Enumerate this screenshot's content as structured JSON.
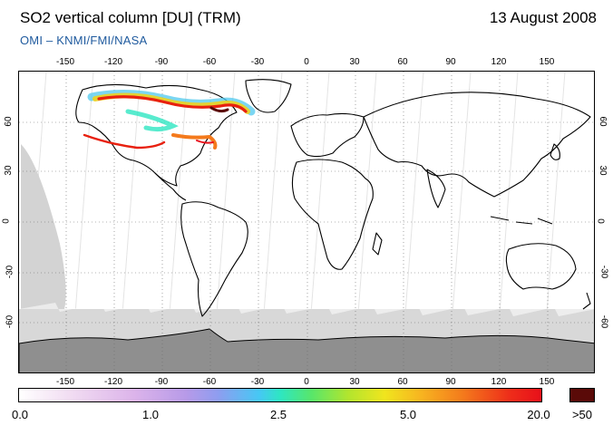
{
  "header": {
    "title": "SO2 vertical column [DU] (TRM)",
    "date": "13 August 2008",
    "credit": "OMI  –  KNMI/FMI/NASA"
  },
  "map": {
    "longitude_ticks": [
      "-150",
      "-120",
      "-90",
      "-60",
      "-30",
      "0",
      "30",
      "60",
      "90",
      "120",
      "150"
    ],
    "latitude_ticks": [
      "60",
      "30",
      "0",
      "-30",
      "-60"
    ],
    "grid": "dotted",
    "no_data_color": "#d3d3d3",
    "land_outline_color": "#000000"
  },
  "colorbar": {
    "labels": [
      "0.0",
      "1.0",
      "2.5",
      "5.0",
      "20.0"
    ],
    "overflow_label": ">50",
    "overflow_color": "#5a0a08",
    "scale": "nonlinear"
  }
}
